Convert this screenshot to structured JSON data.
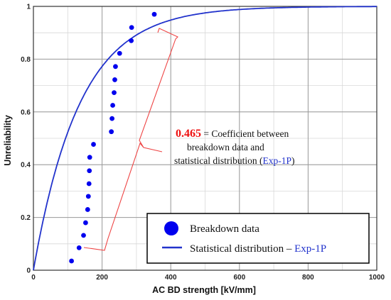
{
  "chart_data": {
    "type": "scatter",
    "xlabel": "AC BD strength [kV/mm]",
    "ylabel": "Unreliability",
    "xlim": [
      0,
      1000
    ],
    "ylim": [
      0,
      1
    ],
    "x_ticks": [
      "0",
      "200",
      "400",
      "600",
      "800",
      "1000"
    ],
    "y_ticks": [
      "0",
      "0.2",
      "0.4",
      "0.6",
      "0.8",
      "1"
    ],
    "grid": true,
    "series": [
      {
        "name": "Breakdown data",
        "kind": "points",
        "color": "#0000ee",
        "points": [
          [
            111,
            0.035
          ],
          [
            133,
            0.085
          ],
          [
            146,
            0.132
          ],
          [
            152,
            0.18
          ],
          [
            158,
            0.23
          ],
          [
            160,
            0.28
          ],
          [
            162,
            0.328
          ],
          [
            163,
            0.377
          ],
          [
            164,
            0.428
          ],
          [
            175,
            0.477
          ],
          [
            227,
            0.525
          ],
          [
            229,
            0.575
          ],
          [
            231,
            0.625
          ],
          [
            235,
            0.673
          ],
          [
            237,
            0.722
          ],
          [
            239,
            0.772
          ],
          [
            251,
            0.822
          ],
          [
            285,
            0.87
          ],
          [
            286,
            0.92
          ],
          [
            352,
            0.97
          ]
        ]
      },
      {
        "name": "Statistical distribution – Exp-1P",
        "kind": "curve",
        "color": "#2233cc",
        "model": "exponential",
        "rate_per_kV_mm": 0.0074
      }
    ],
    "legend": {
      "position": "bottom-right",
      "entries": [
        {
          "label": "Breakdown data",
          "symbol": "dot"
        },
        {
          "label": "Statistical distribution – ",
          "highlight": "Exp-1P",
          "symbol": "line"
        }
      ]
    },
    "annotation": {
      "value": "0.465",
      "value_color": "#ee1111",
      "line1": " = Coefficient between",
      "line2": "breakdown data and",
      "line3_prefix": "statistical distribution (",
      "line3_highlight": "Exp-1P",
      "line3_suffix": ")",
      "highlight_color": "#2233cc",
      "bracket_color": "#ee4444"
    }
  }
}
